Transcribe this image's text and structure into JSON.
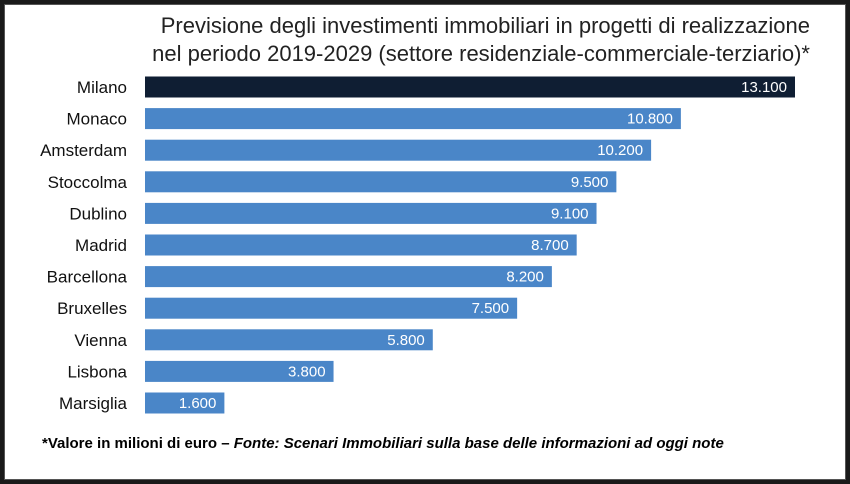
{
  "chart_data": {
    "type": "bar",
    "orientation": "horizontal",
    "title_line1": "Previsione degli investimenti immobiliari in progetti di realizzazione",
    "title_line2": "nel periodo 2019-2029 (settore residenziale-commerciale-terziario)*",
    "categories": [
      "Milano",
      "Monaco",
      "Amsterdam",
      "Stoccolma",
      "Dublino",
      "Madrid",
      "Barcellona",
      "Bruxelles",
      "Vienna",
      "Lisbona",
      "Marsiglia"
    ],
    "values": [
      13100,
      10800,
      10200,
      9500,
      9100,
      8700,
      8200,
      7500,
      5800,
      3800,
      1600
    ],
    "value_labels": [
      "13.100",
      "10.800",
      "10.200",
      "9.500",
      "9.100",
      "8.700",
      "8.200",
      "7.500",
      "5.800",
      "3.800",
      "1.600"
    ],
    "xlim": [
      0,
      13100
    ],
    "grid": false,
    "highlight_category": "Milano",
    "colors": {
      "bar": "#4a86c8",
      "highlight": "#0f1e33",
      "label_text": "#ffffff"
    }
  },
  "footnote": {
    "prefix": "*Valore in milioni di euro – ",
    "source": "Fonte: Scenari Immobiliari sulla base delle informazioni ad oggi note"
  }
}
